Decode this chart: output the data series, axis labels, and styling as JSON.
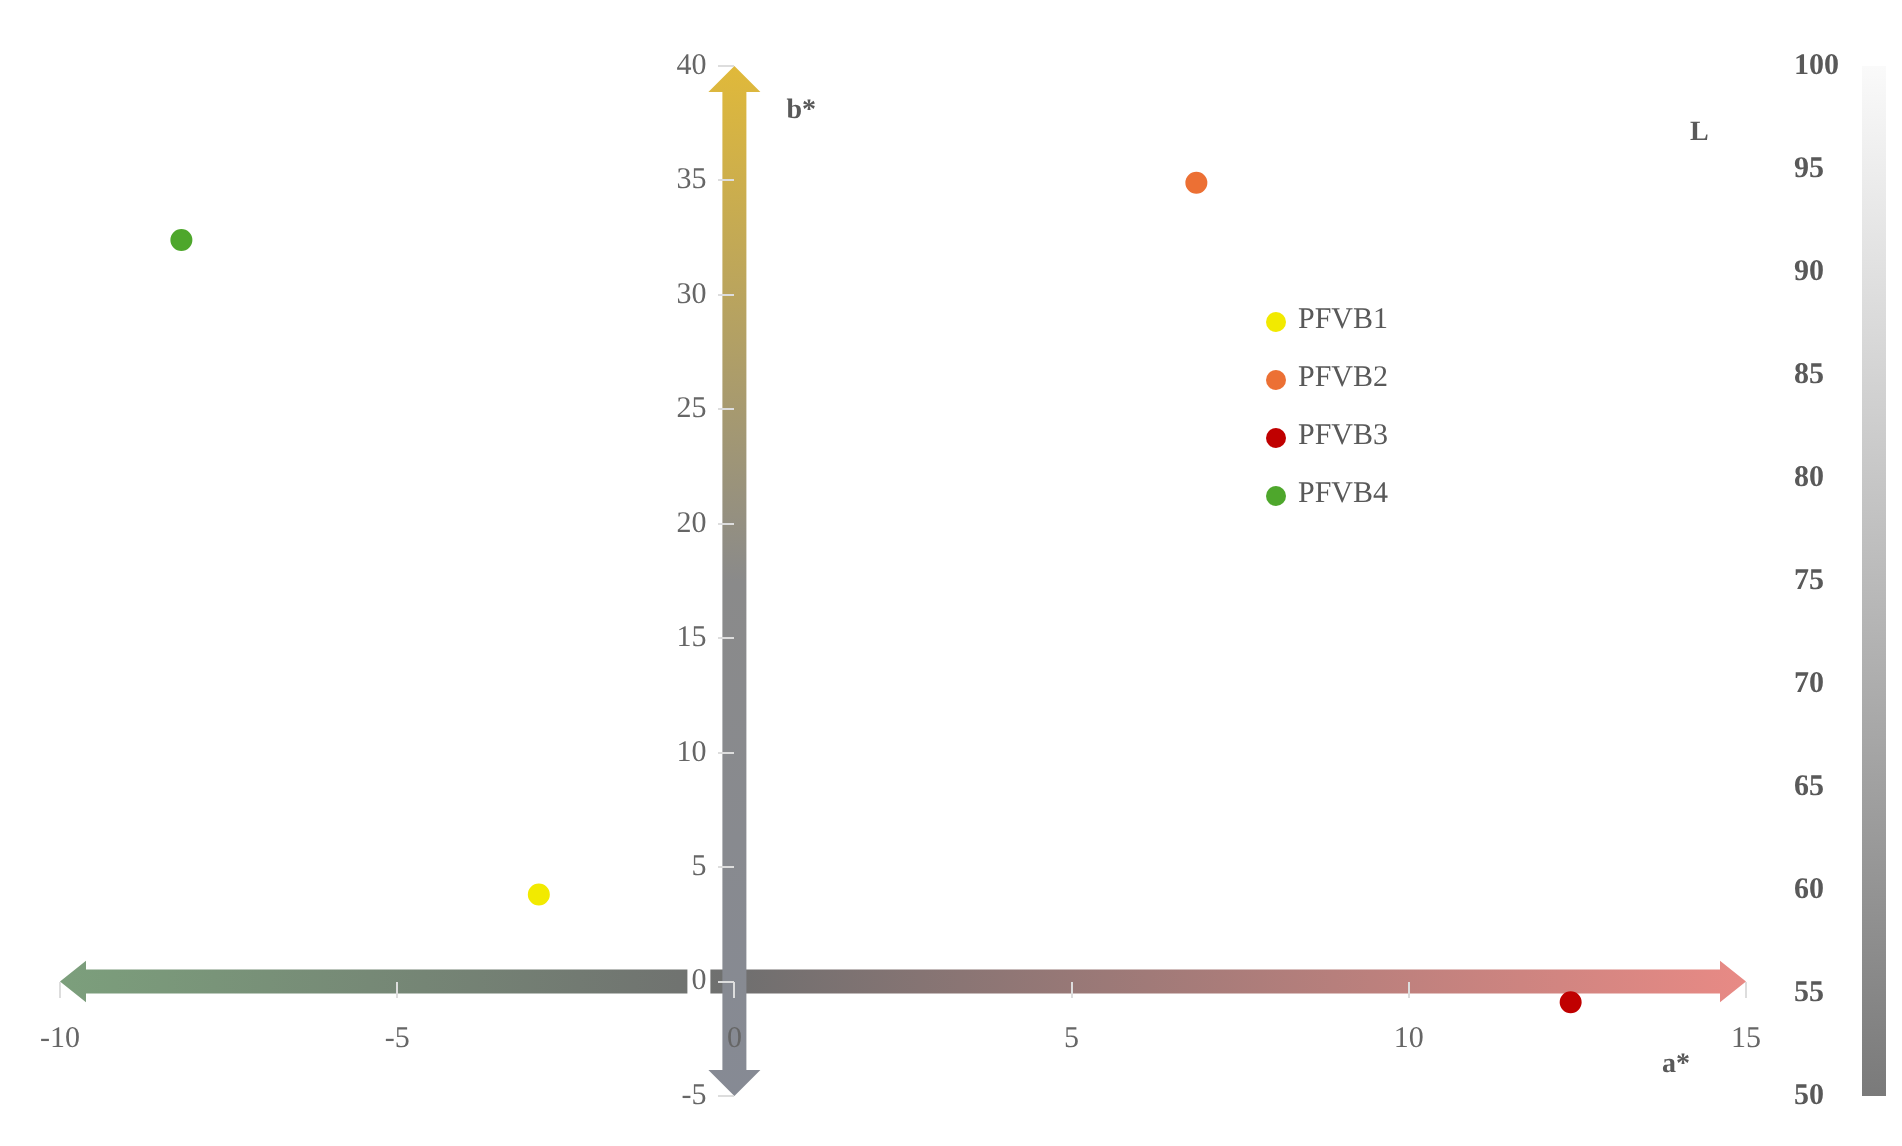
{
  "chart_data": {
    "type": "scatter",
    "xlabel": "a*",
    "ylabel": "b*",
    "y2label": "L",
    "series": [
      {
        "name": "PFVB1",
        "color": "#f2ea00",
        "x": [
          -2.9
        ],
        "values": [
          3.8
        ]
      },
      {
        "name": "PFVB2",
        "color": "#ec7034",
        "x": [
          6.85
        ],
        "values": [
          34.9
        ]
      },
      {
        "name": "PFVB3",
        "color": "#c00000",
        "x": [
          12.4
        ],
        "values": [
          -0.9
        ]
      },
      {
        "name": "PFVB4",
        "color": "#4ea72c",
        "x": [
          -8.2
        ],
        "values": [
          32.4
        ]
      }
    ],
    "xlim": [
      -10,
      15
    ],
    "xticks": [
      -10,
      -5,
      0,
      5,
      10,
      15
    ],
    "ylim": [
      -5,
      40
    ],
    "yticks": [
      -5,
      0,
      5,
      10,
      15,
      20,
      25,
      30,
      35,
      40
    ],
    "y2lim": [
      50,
      100
    ],
    "y2ticks": [
      50,
      55,
      60,
      65,
      70,
      75,
      80,
      85,
      90,
      95,
      100
    ],
    "marker": "circle",
    "legend": "top right",
    "grid": false
  }
}
